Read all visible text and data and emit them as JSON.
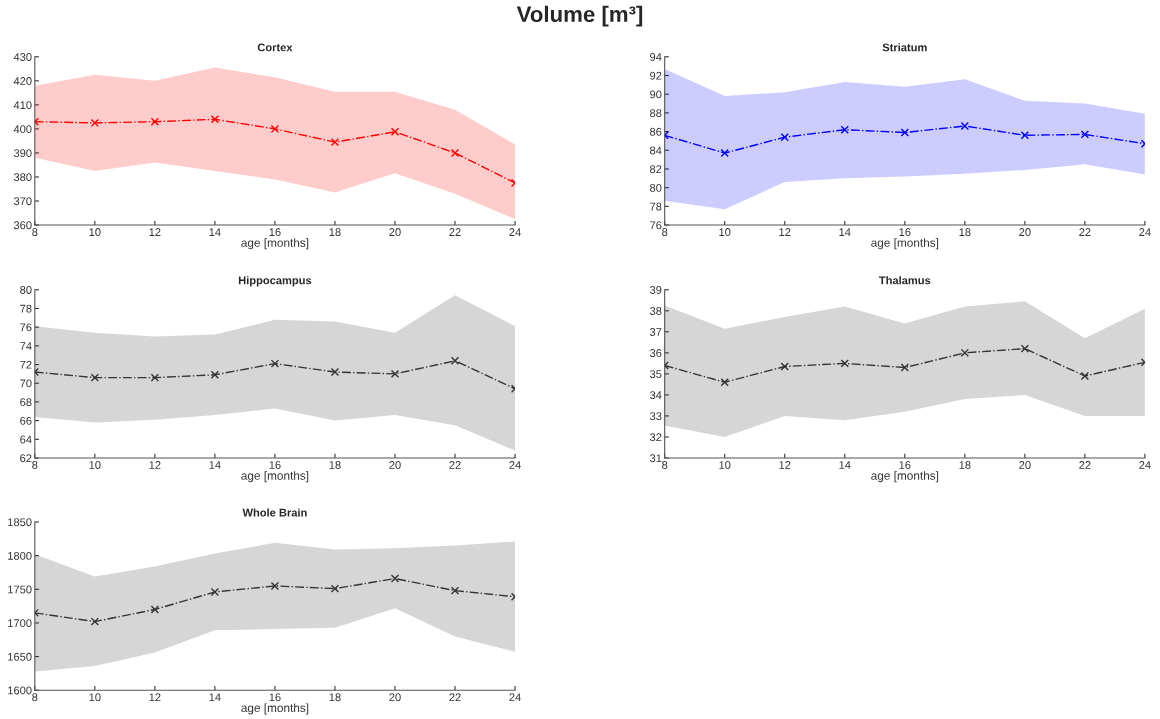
{
  "chart_data": [
    {
      "type": "line",
      "title": "Cortex",
      "xlabel": "age [months]",
      "annotations": [
        "Volume [m³]"
      ],
      "x": [
        8,
        10,
        12,
        14,
        16,
        18,
        20,
        22,
        24
      ],
      "xlim": [
        8,
        24
      ],
      "xticks": [
        8,
        10,
        12,
        14,
        16,
        18,
        20,
        22,
        24
      ],
      "ylim": [
        360,
        430
      ],
      "yticks": [
        360,
        370,
        380,
        390,
        400,
        410,
        420,
        430
      ],
      "marker": "cross",
      "line_style": "dashdot",
      "series": [
        {
          "color": "#ff0000",
          "values": [
            403,
            402.5,
            403,
            404,
            400,
            394.5,
            398.8,
            390,
            377.5
          ],
          "upper": [
            418,
            422.5,
            420,
            425.5,
            421.5,
            415.5,
            415.5,
            408,
            393.5
          ],
          "lower": [
            388,
            382.5,
            386,
            382.5,
            379,
            373.5,
            381.5,
            373,
            362.5
          ]
        }
      ]
    },
    {
      "type": "line",
      "title": "Striatum",
      "xlabel": "age [months]",
      "x": [
        8,
        10,
        12,
        14,
        16,
        18,
        20,
        22,
        24
      ],
      "xlim": [
        8,
        24
      ],
      "xticks": [
        8,
        10,
        12,
        14,
        16,
        18,
        20,
        22,
        24
      ],
      "ylim": [
        76,
        94
      ],
      "yticks": [
        76,
        78,
        80,
        82,
        84,
        86,
        88,
        90,
        92,
        94
      ],
      "marker": "cross",
      "line_style": "dashdot",
      "series": [
        {
          "color": "#0000ff",
          "values": [
            85.6,
            83.7,
            85.4,
            86.2,
            85.9,
            86.6,
            85.6,
            85.7,
            84.7
          ],
          "upper": [
            92.7,
            89.8,
            90.2,
            91.3,
            90.8,
            91.6,
            89.3,
            89.0,
            87.9
          ],
          "lower": [
            78.6,
            77.7,
            80.6,
            81.0,
            81.2,
            81.5,
            81.9,
            82.5,
            81.4
          ]
        }
      ]
    },
    {
      "type": "line",
      "title": "Hippocampus",
      "xlabel": "age [months]",
      "x": [
        8,
        10,
        12,
        14,
        16,
        18,
        20,
        22,
        24
      ],
      "xlim": [
        8,
        24
      ],
      "xticks": [
        8,
        10,
        12,
        14,
        16,
        18,
        20,
        22,
        24
      ],
      "ylim": [
        62,
        80
      ],
      "yticks": [
        62,
        64,
        66,
        68,
        70,
        72,
        74,
        76,
        78,
        80
      ],
      "marker": "cross",
      "line_style": "dashdot",
      "series": [
        {
          "color": "#333333",
          "values": [
            71.2,
            70.6,
            70.6,
            70.9,
            72.1,
            71.2,
            71.0,
            72.4,
            69.4
          ],
          "upper": [
            76.1,
            75.4,
            75.0,
            75.2,
            76.8,
            76.6,
            75.4,
            79.4,
            76.1
          ],
          "lower": [
            66.4,
            65.8,
            66.1,
            66.6,
            67.3,
            66.0,
            66.6,
            65.5,
            62.8
          ]
        }
      ]
    },
    {
      "type": "line",
      "title": "Thalamus",
      "xlabel": "age [months]",
      "x": [
        8,
        10,
        12,
        14,
        16,
        18,
        20,
        22,
        24
      ],
      "xlim": [
        8,
        24
      ],
      "xticks": [
        8,
        10,
        12,
        14,
        16,
        18,
        20,
        22,
        24
      ],
      "ylim": [
        31,
        39
      ],
      "yticks": [
        31,
        32,
        33,
        34,
        35,
        36,
        37,
        38,
        39
      ],
      "marker": "cross",
      "line_style": "dashdot",
      "series": [
        {
          "color": "#333333",
          "values": [
            35.4,
            34.6,
            35.35,
            35.5,
            35.3,
            36.0,
            36.2,
            34.9,
            35.55
          ],
          "upper": [
            38.25,
            37.15,
            37.7,
            38.2,
            37.4,
            38.2,
            38.45,
            36.7,
            38.1
          ],
          "lower": [
            32.55,
            32.0,
            33.0,
            32.8,
            33.2,
            33.8,
            34.0,
            33.0,
            33.0
          ]
        }
      ]
    },
    {
      "type": "line",
      "title": "Whole Brain",
      "xlabel": "age [months]",
      "x": [
        8,
        10,
        12,
        14,
        16,
        18,
        20,
        22,
        24
      ],
      "xlim": [
        8,
        24
      ],
      "xticks": [
        8,
        10,
        12,
        14,
        16,
        18,
        20,
        22,
        24
      ],
      "ylim": [
        1600,
        1850
      ],
      "yticks": [
        1600,
        1650,
        1700,
        1750,
        1800,
        1850
      ],
      "marker": "cross",
      "line_style": "dashdot",
      "series": [
        {
          "color": "#333333",
          "values": [
            1715,
            1702,
            1720,
            1746,
            1755,
            1751,
            1766,
            1748,
            1739
          ],
          "upper": [
            1802,
            1769,
            1784,
            1803,
            1819,
            1809,
            1811,
            1815,
            1821
          ],
          "lower": [
            1628,
            1636,
            1656,
            1689,
            1691,
            1693,
            1722,
            1680,
            1657
          ]
        }
      ]
    }
  ]
}
